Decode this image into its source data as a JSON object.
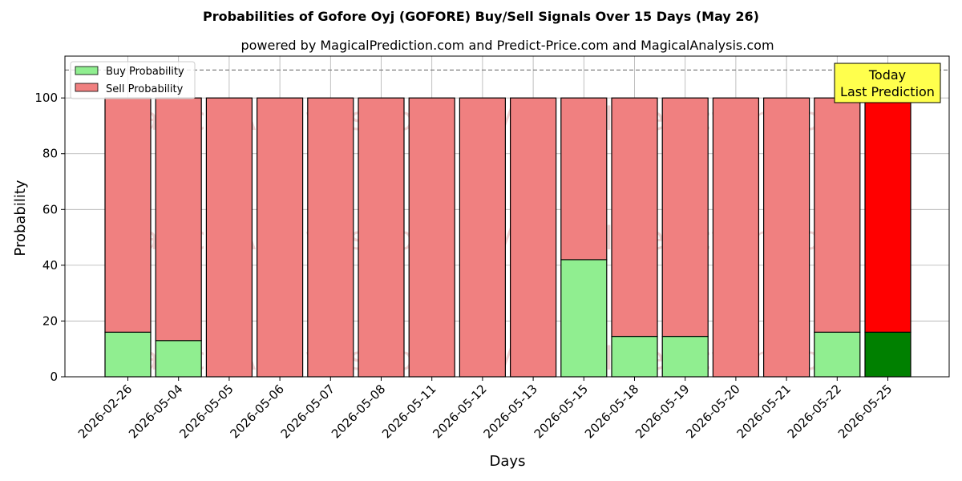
{
  "chart_data": {
    "type": "bar",
    "title": "Probabilities of Gofore Oyj (GOFORE) Buy/Sell Signals Over 15 Days (May 26)",
    "subtitle": "powered by MagicalPrediction.com and Predict-Price.com and MagicalAnalysis.com",
    "xlabel": "Days",
    "ylabel": "Probability",
    "ylim": [
      0,
      115
    ],
    "yticks": [
      0,
      20,
      40,
      60,
      80,
      100
    ],
    "grid": true,
    "legend_position": "top-left",
    "stacked": true,
    "reference_line": 110,
    "categories": [
      "2026-02-26",
      "2026-05-04",
      "2026-05-05",
      "2026-05-06",
      "2026-05-07",
      "2026-05-08",
      "2026-05-11",
      "2026-05-12",
      "2026-05-13",
      "2026-05-15",
      "2026-05-18",
      "2026-05-19",
      "2026-05-20",
      "2026-05-21",
      "2026-05-22",
      "2026-05-25"
    ],
    "series": [
      {
        "name": "Buy Probability",
        "color": "#90ee90",
        "highlight_color": "#008000",
        "values": [
          16,
          13,
          0,
          0,
          0,
          0,
          0,
          0,
          0,
          42,
          14.5,
          14.5,
          0,
          0,
          16,
          16
        ]
      },
      {
        "name": "Sell Probability",
        "color": "#f08080",
        "highlight_color": "#ff0000",
        "values": [
          84,
          87,
          100,
          100,
          100,
          100,
          100,
          100,
          100,
          58,
          85.5,
          85.5,
          100,
          100,
          84,
          84
        ]
      }
    ],
    "highlight_index": 15,
    "annotation": {
      "line1": "Today",
      "line2": "Last Prediction",
      "color": "#ffff4d"
    },
    "watermark": [
      "MagicalAnalysis.com",
      "MagicalPrediction.com"
    ]
  }
}
